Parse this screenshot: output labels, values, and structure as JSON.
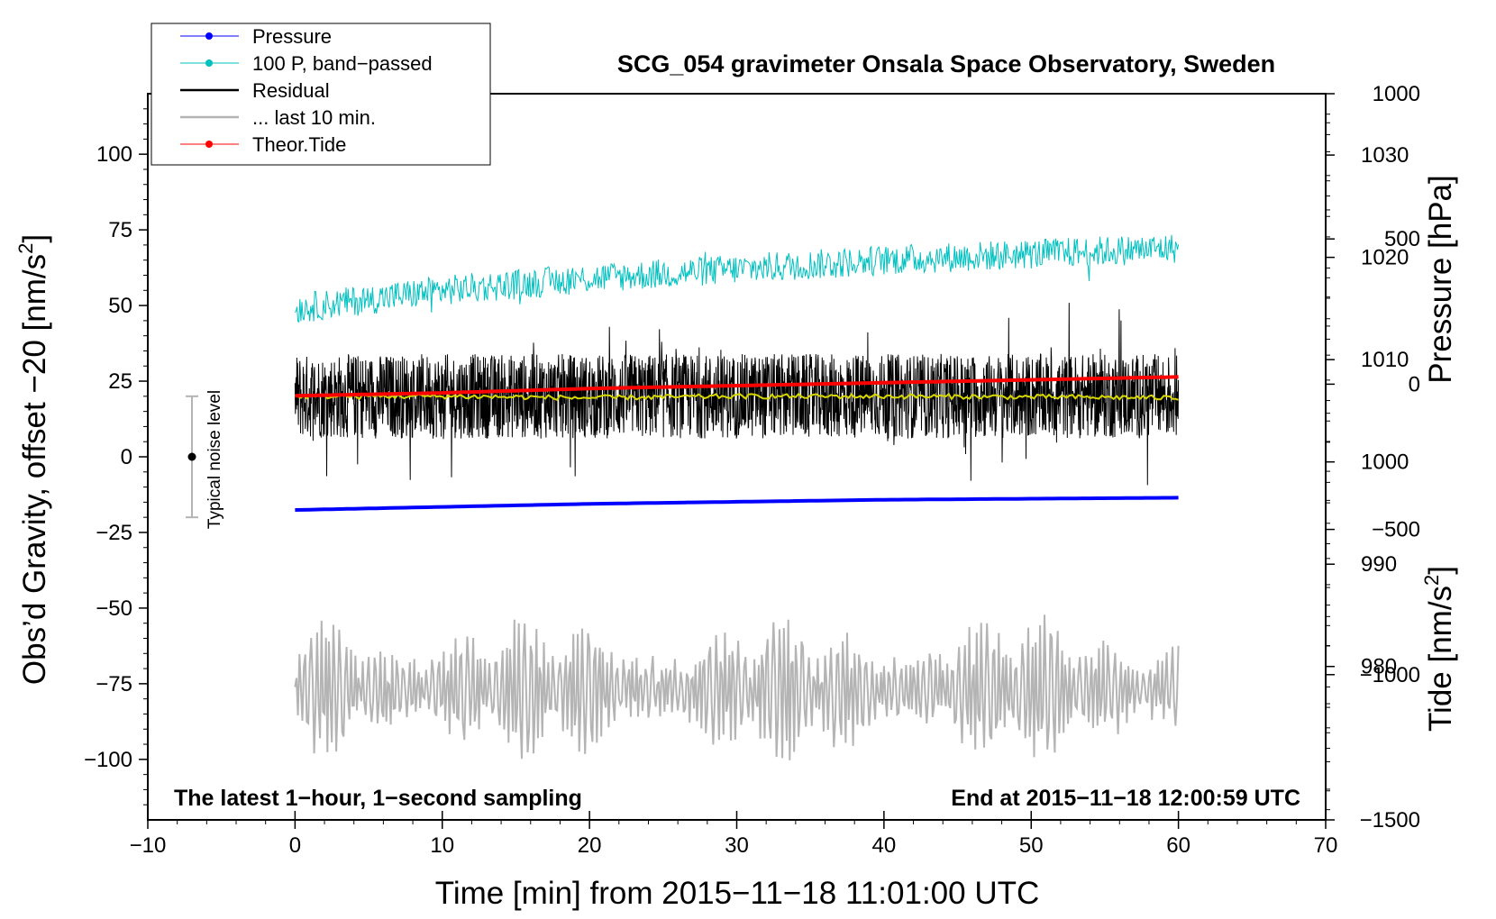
{
  "chart_data": {
    "type": "line",
    "title": "SCG_054 gravimeter Onsala Space Observatory, Sweden",
    "xlabel": "Time [min] from 2015−11−18 11:01:00 UTC",
    "ylabel_left": "Obs’d Gravity, offset −20 [nm/s",
    "ylabel_left_sup": "2",
    "ylabel_left_close": "]",
    "ylabel_pressure": "Pressure [hPa]",
    "ylabel_tide": "Tide [nm/s",
    "ylabel_tide_sup": "2",
    "ylabel_tide_close": "]",
    "xlim": [
      -10,
      70
    ],
    "ylim_left": [
      -120,
      120
    ],
    "ylim_pressure": [
      965,
      1036
    ],
    "ylim_tide": [
      -1500,
      1000
    ],
    "x_ticks": [
      -10,
      0,
      10,
      20,
      30,
      40,
      50,
      60,
      70
    ],
    "x_tick_labels": [
      "−10",
      "0",
      "10",
      "20",
      "30",
      "40",
      "50",
      "60",
      "70"
    ],
    "y_left_ticks": [
      100,
      75,
      50,
      25,
      0,
      -25,
      -50,
      -75,
      -100
    ],
    "y_left_tick_labels": [
      "100",
      "75",
      "50",
      "25",
      "0",
      "−25",
      "−50",
      "−75",
      "−100"
    ],
    "y_pressure_ticks": [
      1030,
      1020,
      1010,
      1000,
      990,
      980
    ],
    "y_pressure_tick_labels": [
      "1030",
      "1020",
      "1010",
      "1000",
      "990",
      "980"
    ],
    "y_tide_ticks": [
      1000,
      500,
      0,
      -500,
      -1000,
      -1500
    ],
    "y_tide_tick_labels": [
      "1000",
      "500",
      "0",
      "−500",
      "−1000",
      "−1500"
    ],
    "annotation_left": "The latest 1−hour, 1−second sampling",
    "annotation_right": "End at 2015−11−18 12:00:59 UTC",
    "noise_label": "Typical noise level",
    "noise_bar": {
      "x": -7,
      "center": 0,
      "half_range": 20
    },
    "legend": [
      {
        "label": "Pressure",
        "color": "#0000ff",
        "marker": true
      },
      {
        "label": "100 P, band−passed",
        "color": "#00c0c0",
        "marker": true
      },
      {
        "label": "Residual",
        "color": "#000000",
        "marker": false
      },
      {
        "label": "... last 10 min.",
        "color": "#b4b4b4",
        "marker": false
      },
      {
        "label": "Theor.Tide",
        "color": "#ff0000",
        "marker": true
      }
    ],
    "series": [
      {
        "name": "Pressure",
        "axis": "pressure",
        "color": "#0000ff",
        "x": [
          0,
          10,
          20,
          30,
          40,
          50,
          60
        ],
        "values": [
          995.3,
          995.6,
          995.9,
          996.1,
          996.3,
          996.4,
          996.5
        ]
      },
      {
        "name": "100 P, band−passed",
        "axis": "left",
        "color": "#00c0c0",
        "x": [
          0,
          10,
          20,
          30,
          40,
          50,
          60
        ],
        "center": [
          49,
          55,
          59,
          62,
          65,
          67,
          69
        ],
        "amplitude": 5
      },
      {
        "name": "Residual",
        "axis": "left",
        "color": "#000000",
        "x": [
          0,
          10,
          20,
          30,
          40,
          50,
          60
        ],
        "center": [
          20,
          20,
          20,
          20,
          20,
          20,
          20
        ],
        "amplitude": 14
      },
      {
        "name": "Residual smoothed",
        "axis": "left",
        "color": "#d8d800",
        "x": [
          0,
          10,
          20,
          30,
          40,
          50,
          60
        ],
        "values": [
          20,
          20,
          19.5,
          20,
          20,
          19.8,
          19.5
        ]
      },
      {
        "name": "... last 10 min.",
        "axis": "left",
        "color": "#b4b4b4",
        "x": [
          0,
          10,
          20,
          30,
          40,
          50,
          60
        ],
        "center": [
          -77,
          -77,
          -77,
          -77,
          -77,
          -77,
          -77
        ],
        "amplitude": 18
      },
      {
        "name": "Theor.Tide",
        "axis": "tide",
        "color": "#ff0000",
        "x": [
          0,
          10,
          20,
          30,
          40,
          50,
          60
        ],
        "values": [
          -40,
          -30,
          -15,
          -5,
          5,
          15,
          25
        ]
      }
    ]
  }
}
